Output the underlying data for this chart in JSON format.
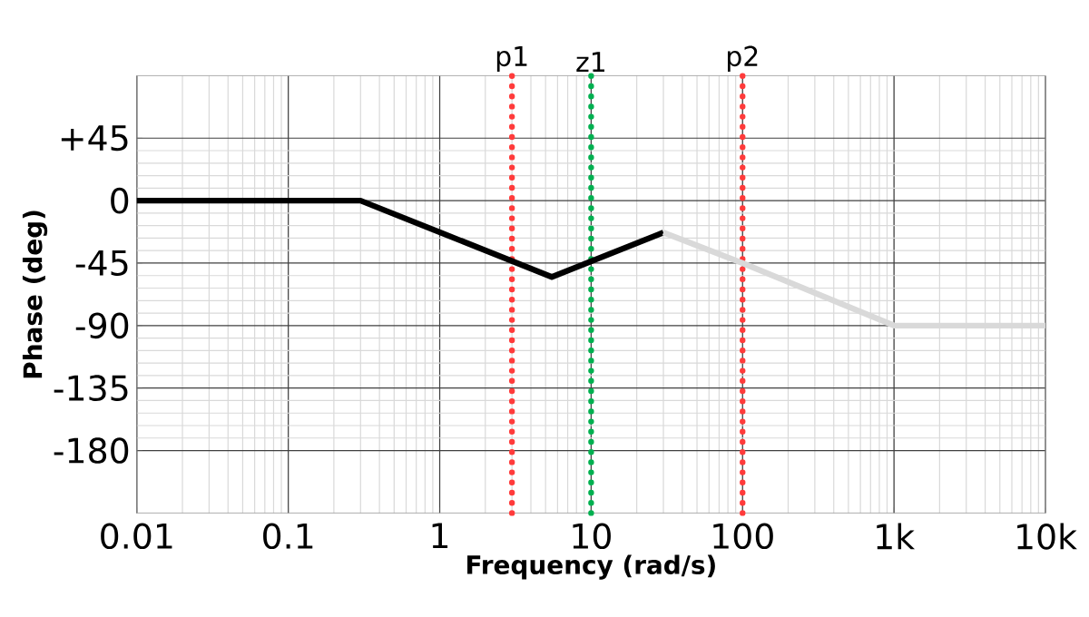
{
  "chart_data": {
    "type": "line",
    "xlabel": "Frequency (rad/s)",
    "ylabel": "Phase (deg)",
    "series": [
      {
        "color": "#000000",
        "x": [
          0.01,
          0.3,
          5.5,
          30
        ],
        "values": [
          0,
          0,
          -55,
          -23
        ]
      },
      {
        "color": "#d9d9d9",
        "x": [
          30,
          100,
          1000,
          10000
        ],
        "values": [
          -23,
          -45,
          -90,
          -90
        ]
      }
    ],
    "log": "x",
    "xlim": [
      0.01,
      10000
    ],
    "ylim": [
      -225,
      90
    ],
    "xticks": [
      0.01,
      0.1,
      1,
      10,
      100,
      {
        "value": 1000,
        "label": "1k"
      },
      {
        "value": 10000,
        "label": "10k"
      }
    ],
    "yticks": [
      {
        "value": 45,
        "label": "+45"
      },
      0,
      -45,
      -90,
      -135,
      -180
    ],
    "grid": true,
    "marker": "none",
    "line_style": "solid",
    "ref_lines": [
      {
        "axis": "x",
        "value": 3,
        "label": "p1",
        "color": "#ff3b3b",
        "line_style": "dotted"
      },
      {
        "axis": "x",
        "value": 10,
        "label": "z1",
        "color": "#00b050",
        "line_style": "dotted"
      },
      {
        "axis": "x",
        "value": 100,
        "label": "p2",
        "color": "#ff3b3b",
        "line_style": "dotted"
      }
    ]
  }
}
